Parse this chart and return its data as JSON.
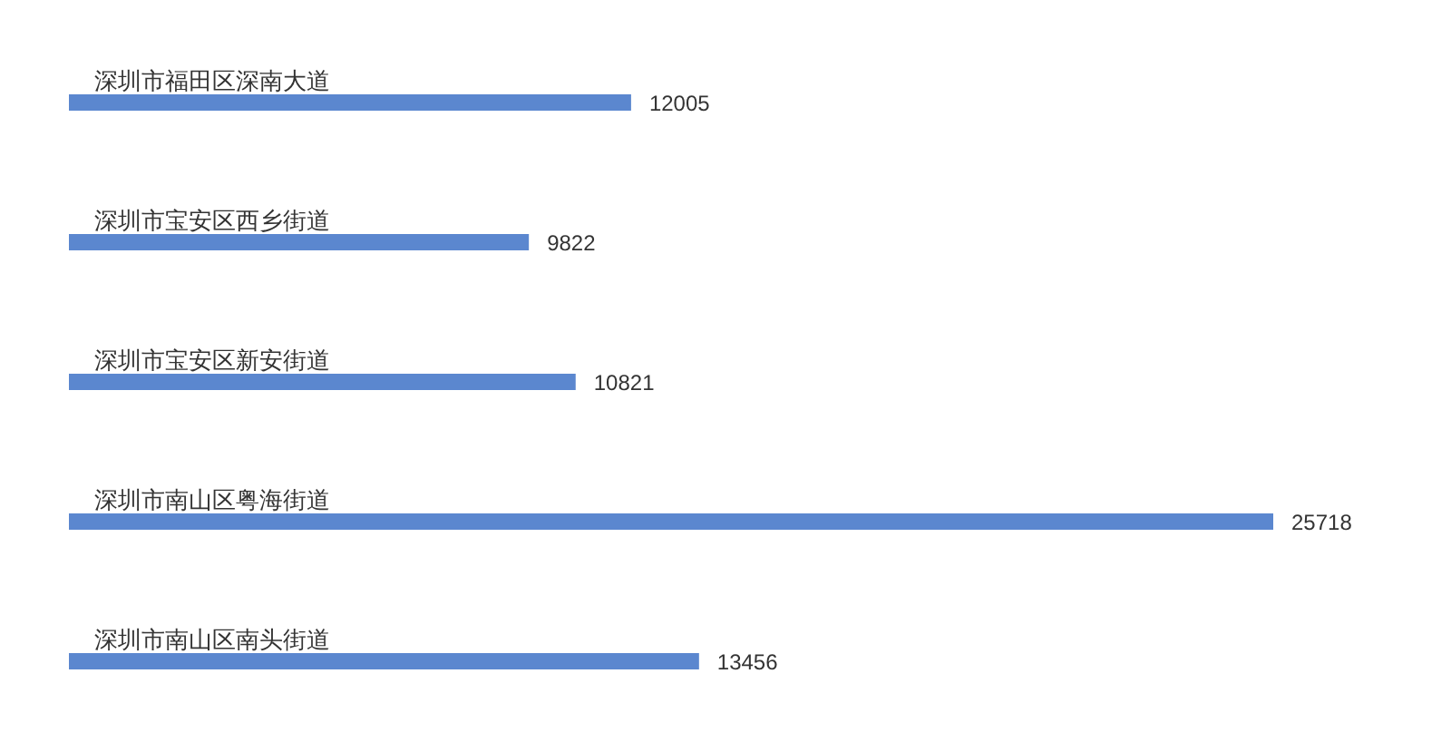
{
  "chart_data": {
    "type": "bar",
    "orientation": "horizontal",
    "categories": [
      "深圳市福田区深南大道",
      "深圳市宝安区西乡街道",
      "深圳市宝安区新安街道",
      "深圳市南山区粤海街道",
      "深圳市南山区南头街道"
    ],
    "values": [
      12005,
      9822,
      10821,
      25718,
      13456
    ],
    "color": "#5b87cf",
    "data_labels": true,
    "grid": false,
    "legend": false
  }
}
